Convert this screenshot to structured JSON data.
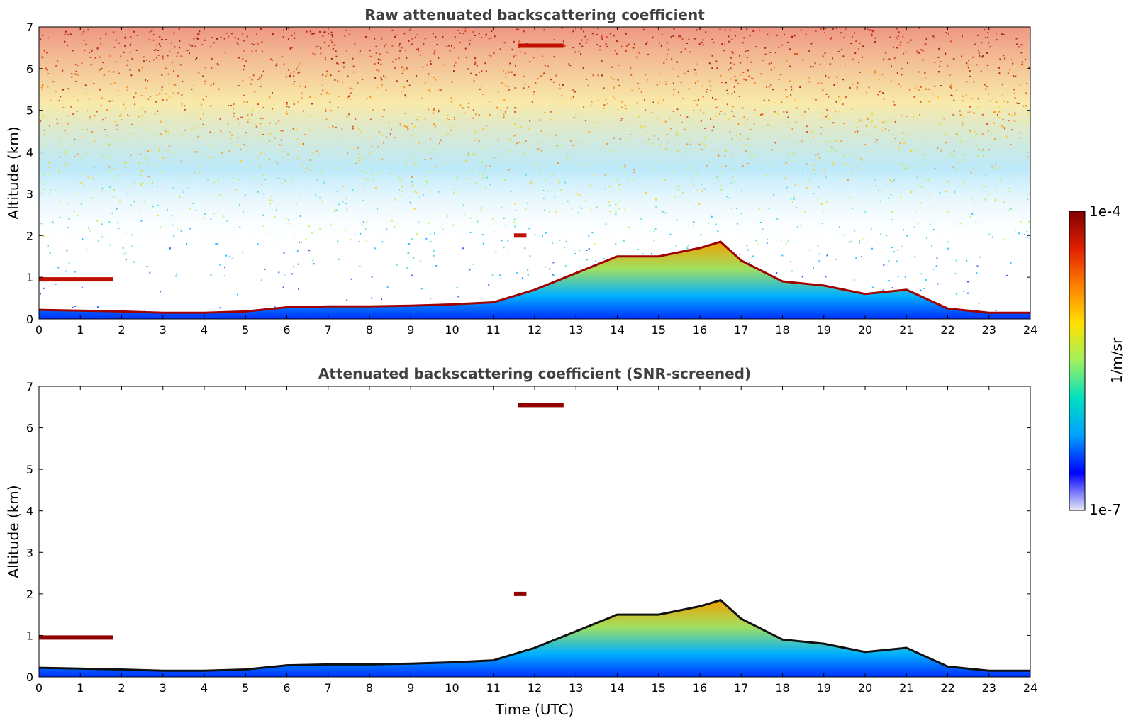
{
  "chart_data": [
    {
      "type": "heatmap",
      "title": "Raw attenuated backscattering coefficient",
      "xlabel": "",
      "ylabel": "Altitude (km)",
      "xlim": [
        0,
        24
      ],
      "ylim": [
        0,
        7
      ],
      "x_ticks": [
        "0",
        "1",
        "2",
        "3",
        "4",
        "5",
        "6",
        "7",
        "8",
        "9",
        "10",
        "11",
        "12",
        "13",
        "14",
        "15",
        "16",
        "17",
        "18",
        "19",
        "20",
        "21",
        "22",
        "23",
        "24"
      ],
      "y_ticks": [
        "0",
        "1",
        "2",
        "3",
        "4",
        "5",
        "6",
        "7"
      ],
      "boundary_layer_top_km": {
        "time": [
          0,
          1,
          2,
          3,
          4,
          5,
          6,
          7,
          8,
          9,
          10,
          11,
          12,
          13,
          14,
          15,
          16,
          16.5,
          17,
          18,
          19,
          20,
          21,
          22,
          23,
          24
        ],
        "altitude": [
          0.22,
          0.2,
          0.18,
          0.15,
          0.15,
          0.18,
          0.28,
          0.3,
          0.3,
          0.32,
          0.35,
          0.4,
          0.7,
          1.1,
          1.5,
          1.5,
          1.7,
          1.85,
          1.4,
          0.9,
          0.8,
          0.6,
          0.7,
          0.25,
          0.15,
          0.15
        ]
      },
      "cloud_features": [
        {
          "time_start": 0,
          "time_end": 1.8,
          "altitude": 0.95
        },
        {
          "time_start": 11.5,
          "time_end": 11.8,
          "altitude": 2.0
        },
        {
          "time_start": 11.6,
          "time_end": 12.7,
          "altitude": 6.55
        }
      ],
      "noise_level": "high"
    },
    {
      "type": "heatmap",
      "title": "Attenuated backscattering coefficient (SNR-screened)",
      "xlabel": "Time (UTC)",
      "ylabel": "Altitude (km)",
      "xlim": [
        0,
        24
      ],
      "ylim": [
        0,
        7
      ],
      "x_ticks": [
        "0",
        "1",
        "2",
        "3",
        "4",
        "5",
        "6",
        "7",
        "8",
        "9",
        "10",
        "11",
        "12",
        "13",
        "14",
        "15",
        "16",
        "17",
        "18",
        "19",
        "20",
        "21",
        "22",
        "23",
        "24"
      ],
      "y_ticks": [
        "0",
        "1",
        "2",
        "3",
        "4",
        "5",
        "6",
        "7"
      ],
      "boundary_layer_top_km": {
        "time": [
          0,
          1,
          2,
          3,
          4,
          5,
          6,
          7,
          8,
          9,
          10,
          11,
          12,
          13,
          14,
          15,
          16,
          16.5,
          17,
          18,
          19,
          20,
          21,
          22,
          23,
          24
        ],
        "altitude": [
          0.22,
          0.2,
          0.18,
          0.15,
          0.15,
          0.18,
          0.28,
          0.3,
          0.3,
          0.32,
          0.35,
          0.4,
          0.7,
          1.1,
          1.5,
          1.5,
          1.7,
          1.85,
          1.4,
          0.9,
          0.8,
          0.6,
          0.7,
          0.25,
          0.15,
          0.15
        ]
      },
      "cloud_features": [
        {
          "time_start": 0,
          "time_end": 1.8,
          "altitude": 0.95
        },
        {
          "time_start": 11.5,
          "time_end": 11.8,
          "altitude": 2.0
        },
        {
          "time_start": 11.6,
          "time_end": 12.7,
          "altitude": 6.55
        }
      ],
      "noise_level": "none"
    }
  ],
  "colorbar": {
    "max_label": "1e-4",
    "min_label": "1e-7",
    "unit_label": "1/m/sr",
    "colors": [
      "#e8e8f8",
      "#0000ff",
      "#00a0ff",
      "#00e0c0",
      "#a0f060",
      "#ffe000",
      "#ff8000",
      "#e02000",
      "#800000"
    ]
  }
}
